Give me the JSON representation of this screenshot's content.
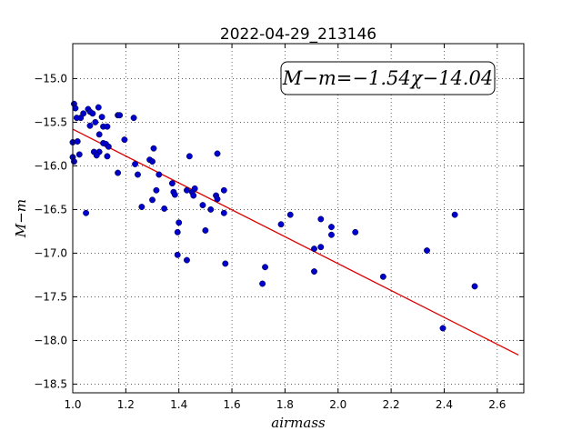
{
  "chart_data": {
    "type": "scatter",
    "title": "2022-04-29_213146",
    "xlabel": "airmass",
    "ylabel": "M−m",
    "xlim": [
      1.0,
      2.7
    ],
    "ylim": [
      -18.6,
      -14.6
    ],
    "y_inverted": true,
    "grid": true,
    "x_ticks": [
      1.0,
      1.2,
      1.4,
      1.6,
      1.8,
      2.0,
      2.2,
      2.4,
      2.6
    ],
    "x_tick_labels": [
      "1.0",
      "1.2",
      "1.4",
      "1.6",
      "1.8",
      "2.0",
      "2.2",
      "2.4",
      "2.6"
    ],
    "y_ticks": [
      -15.0,
      -15.5,
      -16.0,
      -16.5,
      -17.0,
      -17.5,
      -18.0,
      -18.5
    ],
    "y_tick_labels": [
      "−15.0",
      "−15.5",
      "−16.0",
      "−16.5",
      "−17.0",
      "−17.5",
      "−18.0",
      "−18.5"
    ],
    "annotation": "M−m=−1.54χ−14.04",
    "point_color": "#0000cc",
    "line_color": "#dd0000",
    "points": [
      {
        "x": 1.005,
        "y": -15.29
      },
      {
        "x": 1.01,
        "y": -15.34
      },
      {
        "x": 1.015,
        "y": -15.45
      },
      {
        "x": 1.03,
        "y": -15.45
      },
      {
        "x": 1.04,
        "y": -15.4
      },
      {
        "x": 1.058,
        "y": -15.35
      },
      {
        "x": 1.065,
        "y": -15.38
      },
      {
        "x": 1.075,
        "y": -15.4
      },
      {
        "x": 1.097,
        "y": -15.33
      },
      {
        "x": 1.085,
        "y": -15.5
      },
      {
        "x": 1.065,
        "y": -15.54
      },
      {
        "x": 1.11,
        "y": -15.44
      },
      {
        "x": 1.115,
        "y": -15.55
      },
      {
        "x": 1.13,
        "y": -15.55
      },
      {
        "x": 1.1,
        "y": -15.64
      },
      {
        "x": 1.17,
        "y": -15.42
      },
      {
        "x": 1.177,
        "y": -15.42
      },
      {
        "x": 1.23,
        "y": -15.45
      },
      {
        "x": 1.0,
        "y": -15.73
      },
      {
        "x": 1.018,
        "y": -15.72
      },
      {
        "x": 1.115,
        "y": -15.74
      },
      {
        "x": 1.125,
        "y": -15.75
      },
      {
        "x": 1.135,
        "y": -15.78
      },
      {
        "x": 1.195,
        "y": -15.7
      },
      {
        "x": 1.08,
        "y": -15.84
      },
      {
        "x": 1.1,
        "y": -15.84
      },
      {
        "x": 1.025,
        "y": -15.87
      },
      {
        "x": 1.09,
        "y": -15.88
      },
      {
        "x": 1.13,
        "y": -15.89
      },
      {
        "x": 1.0,
        "y": -15.9
      },
      {
        "x": 1.005,
        "y": -15.95
      },
      {
        "x": 1.235,
        "y": -15.98
      },
      {
        "x": 1.29,
        "y": -15.93
      },
      {
        "x": 1.3,
        "y": -15.95
      },
      {
        "x": 1.305,
        "y": -15.8
      },
      {
        "x": 1.44,
        "y": -15.89
      },
      {
        "x": 1.545,
        "y": -15.86
      },
      {
        "x": 1.17,
        "y": -16.08
      },
      {
        "x": 1.245,
        "y": -16.1
      },
      {
        "x": 1.325,
        "y": -16.1
      },
      {
        "x": 1.375,
        "y": -16.2
      },
      {
        "x": 1.315,
        "y": -16.28
      },
      {
        "x": 1.38,
        "y": -16.3
      },
      {
        "x": 1.385,
        "y": -16.33
      },
      {
        "x": 1.43,
        "y": -16.28
      },
      {
        "x": 1.45,
        "y": -16.3
      },
      {
        "x": 1.46,
        "y": -16.26
      },
      {
        "x": 1.455,
        "y": -16.34
      },
      {
        "x": 1.54,
        "y": -16.34
      },
      {
        "x": 1.545,
        "y": -16.38
      },
      {
        "x": 1.57,
        "y": -16.28
      },
      {
        "x": 1.3,
        "y": -16.39
      },
      {
        "x": 1.26,
        "y": -16.47
      },
      {
        "x": 1.345,
        "y": -16.49
      },
      {
        "x": 1.49,
        "y": -16.45
      },
      {
        "x": 1.52,
        "y": -16.5
      },
      {
        "x": 1.57,
        "y": -16.54
      },
      {
        "x": 1.05,
        "y": -16.54
      },
      {
        "x": 1.82,
        "y": -16.56
      },
      {
        "x": 1.935,
        "y": -16.61
      },
      {
        "x": 1.4,
        "y": -16.65
      },
      {
        "x": 1.785,
        "y": -16.67
      },
      {
        "x": 1.975,
        "y": -16.7
      },
      {
        "x": 1.5,
        "y": -16.74
      },
      {
        "x": 1.395,
        "y": -16.76
      },
      {
        "x": 2.065,
        "y": -16.76
      },
      {
        "x": 1.975,
        "y": -16.79
      },
      {
        "x": 2.44,
        "y": -16.56
      },
      {
        "x": 1.935,
        "y": -16.93
      },
      {
        "x": 1.91,
        "y": -16.95
      },
      {
        "x": 2.335,
        "y": -16.97
      },
      {
        "x": 1.395,
        "y": -17.02
      },
      {
        "x": 1.43,
        "y": -17.08
      },
      {
        "x": 1.575,
        "y": -17.12
      },
      {
        "x": 1.725,
        "y": -17.16
      },
      {
        "x": 1.91,
        "y": -17.21
      },
      {
        "x": 2.17,
        "y": -17.27
      },
      {
        "x": 1.715,
        "y": -17.35
      },
      {
        "x": 2.515,
        "y": -17.38
      },
      {
        "x": 2.395,
        "y": -17.86
      }
    ],
    "fit_line": {
      "slope": -1.54,
      "intercept": -14.04,
      "x_start": 1.0,
      "x_end": 2.68
    }
  }
}
